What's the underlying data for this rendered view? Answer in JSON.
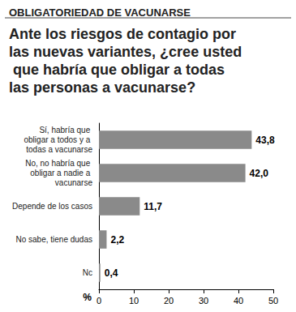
{
  "chart_data": {
    "type": "bar",
    "orientation": "horizontal",
    "subtitle": "OBLIGATORIEDAD DE VACUNARSE",
    "title": "Ante los riesgos de contagio por las nuevas variantes, ¿cree usted que habría que obligar a todas las personas a vacunarse?",
    "categories": [
      "Sí, habría que obligar a todos y a todas a vacunarse",
      "No, no habría que obligar a nadie a vacunarse",
      "Depende de los casos",
      "No sabe, tiene dudas",
      "Nc"
    ],
    "values": [
      43.8,
      42.0,
      11.7,
      2.2,
      0.4
    ],
    "value_labels": [
      "43,8",
      "42,0",
      "11,7",
      "2,2",
      "0,4"
    ],
    "data_labels": true,
    "color": "#8a8a8a",
    "xlabel": "%",
    "xlim": [
      0,
      50
    ],
    "xticks": [
      0,
      10,
      20,
      30,
      40,
      50
    ],
    "grid": false
  }
}
